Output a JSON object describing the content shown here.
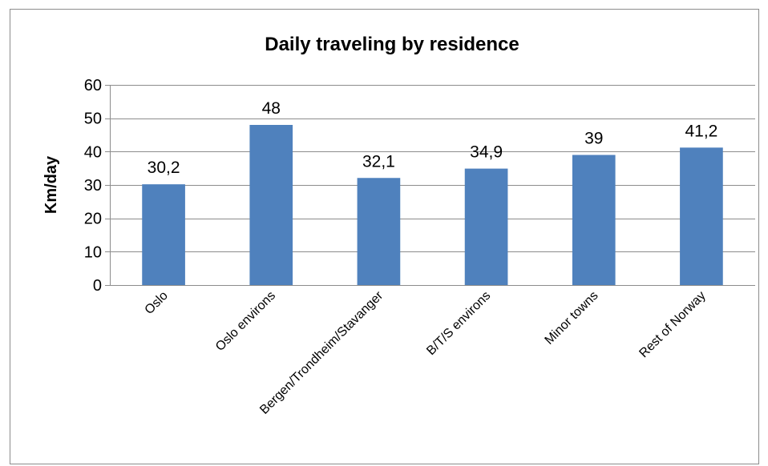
{
  "chart_data": {
    "type": "bar",
    "title": "Daily traveling by residence",
    "xlabel": "",
    "ylabel": "Km/day",
    "categories": [
      "Oslo",
      "Oslo environs",
      "Bergen/Trondheim/Stavanger",
      "B/T/S environs",
      "Minor towns",
      "Rest of Norway"
    ],
    "values": [
      30.2,
      48,
      32.1,
      34.9,
      39,
      41.2
    ],
    "data_labels": [
      "30,2",
      "48",
      "32,1",
      "34,9",
      "39",
      "41,2"
    ],
    "ylim": [
      0,
      60
    ],
    "yticks": [
      0,
      10,
      20,
      30,
      40,
      50,
      60
    ],
    "grid": true,
    "legend": "none",
    "colors": {
      "bar": "#4f81bd",
      "grid": "#8c8c8c",
      "frame": "#8c8c8c"
    }
  }
}
